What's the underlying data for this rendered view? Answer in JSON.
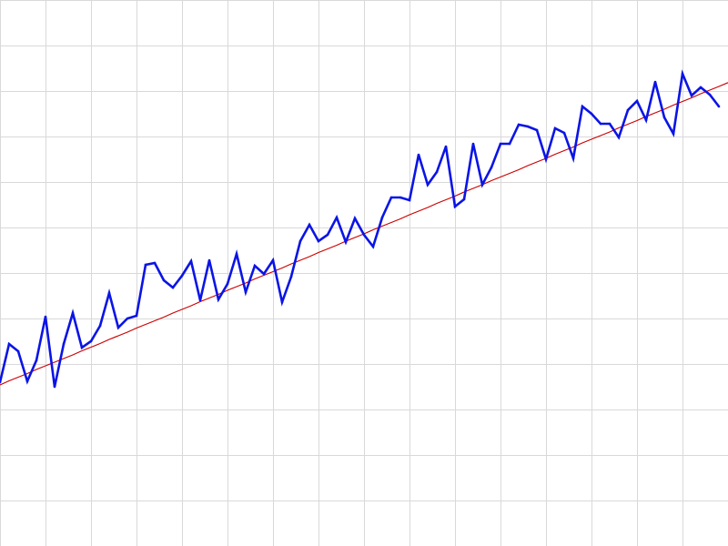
{
  "chart_data": {
    "type": "line",
    "title": "",
    "xlabel": "",
    "ylabel": "",
    "grid": true,
    "xlim": [
      0,
      80
    ],
    "ylim": [
      0,
      12
    ],
    "x": [
      0,
      1,
      2,
      3,
      4,
      5,
      6,
      7,
      8,
      9,
      10,
      11,
      12,
      13,
      14,
      15,
      16,
      17,
      18,
      19,
      20,
      21,
      22,
      23,
      24,
      25,
      26,
      27,
      28,
      29,
      30,
      31,
      32,
      33,
      34,
      35,
      36,
      37,
      38,
      39,
      40,
      41,
      42,
      43,
      44,
      45,
      46,
      47,
      48,
      49,
      50,
      51,
      52,
      53,
      54,
      55,
      56,
      57,
      58,
      59,
      60,
      61,
      62,
      63,
      64,
      65,
      66,
      67,
      68,
      69,
      70,
      71,
      72,
      73,
      74,
      75,
      76,
      77,
      78,
      79
    ],
    "series": [
      {
        "color": "#0a14e6",
        "style": "line",
        "values": [
          3.6,
          4.44,
          4.28,
          3.62,
          4.08,
          5.04,
          3.5,
          4.44,
          5.12,
          4.36,
          4.5,
          4.84,
          5.56,
          4.8,
          5,
          5.06,
          6.18,
          6.22,
          5.84,
          5.68,
          5.94,
          6.26,
          5.4,
          6.28,
          5.42,
          5.76,
          6.42,
          5.58,
          6.16,
          5.98,
          6.28,
          5.36,
          5.92,
          6.7,
          7.06,
          6.7,
          6.84,
          7.22,
          6.68,
          7.2,
          6.84,
          6.58,
          7.22,
          7.66,
          7.66,
          7.6,
          8.6,
          7.94,
          8.22,
          8.78,
          7.46,
          7.62,
          8.84,
          7.94,
          8.32,
          8.84,
          8.84,
          9.26,
          9.22,
          9.14,
          8.5,
          9.18,
          9.08,
          8.52,
          9.66,
          9.5,
          9.28,
          9.28,
          8.98,
          9.58,
          9.78,
          9.36,
          10.2,
          9.42,
          9.06,
          10.38,
          9.9,
          10.08,
          9.92,
          9.66
        ]
      },
      {
        "color": "#cc0000",
        "style": "trend",
        "values": [
          3.54,
          3.63,
          3.71,
          3.79,
          3.88,
          3.96,
          4.04,
          4.12,
          4.2,
          4.29,
          4.37,
          4.45,
          4.54,
          4.62,
          4.7,
          4.79,
          4.87,
          4.95,
          5.03,
          5.12,
          5.2,
          5.28,
          5.37,
          5.45,
          5.53,
          5.62,
          5.7,
          5.78,
          5.87,
          5.95,
          6.03,
          6.11,
          6.2,
          6.28,
          6.36,
          6.45,
          6.53,
          6.61,
          6.7,
          6.78,
          6.86,
          6.95,
          7.03,
          7.11,
          7.19,
          7.28,
          7.36,
          7.44,
          7.53,
          7.61,
          7.69,
          7.78,
          7.86,
          7.94,
          8.03,
          8.11,
          8.19,
          8.27,
          8.36,
          8.44,
          8.52,
          8.61,
          8.69,
          8.77,
          8.86,
          8.94,
          9.02,
          9.1,
          9.19,
          9.27,
          9.35,
          9.44,
          9.52,
          9.6,
          9.69,
          9.77,
          9.85,
          9.94,
          10.02,
          10.1
        ]
      }
    ]
  }
}
